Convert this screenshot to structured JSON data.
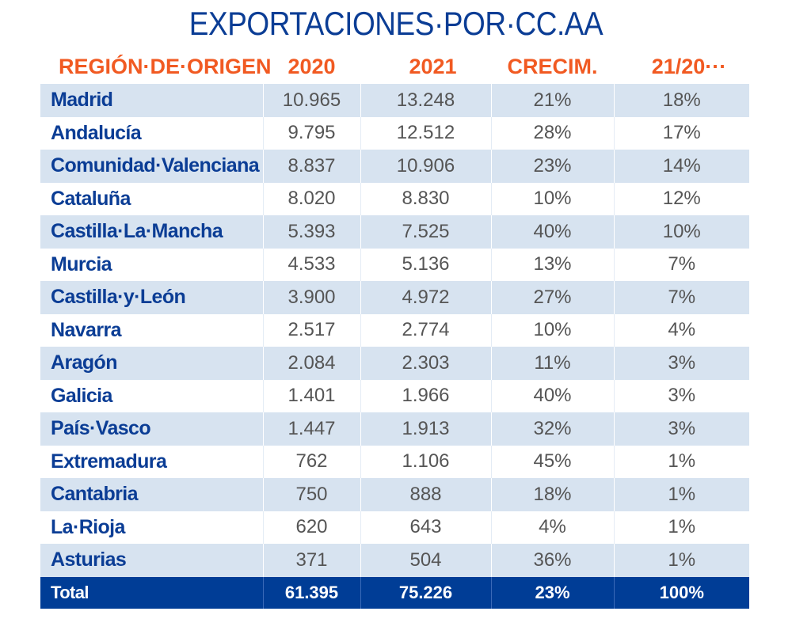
{
  "title": "EXPORTACIONES·POR·CC.AA",
  "headers": {
    "region": "REGIÓN·DE·ORIGEN",
    "y2020": "2020",
    "y2021": "2021",
    "growth": "CRECIM.",
    "share": "21/20···"
  },
  "rows": [
    {
      "region": "Madrid",
      "y2020": "10.965",
      "y2021": "13.248",
      "growth": "21%",
      "share": "18%"
    },
    {
      "region": "Andalucía",
      "y2020": "9.795",
      "y2021": "12.512",
      "growth": "28%",
      "share": "17%"
    },
    {
      "region": "Comunidad·Valenciana",
      "y2020": "8.837",
      "y2021": "10.906",
      "growth": "23%",
      "share": "14%"
    },
    {
      "region": "Cataluña",
      "y2020": "8.020",
      "y2021": "8.830",
      "growth": "10%",
      "share": "12%"
    },
    {
      "region": "Castilla·La·Mancha",
      "y2020": "5.393",
      "y2021": "7.525",
      "growth": "40%",
      "share": "10%"
    },
    {
      "region": "Murcia",
      "y2020": "4.533",
      "y2021": "5.136",
      "growth": "13%",
      "share": "7%"
    },
    {
      "region": "Castilla·y·León",
      "y2020": "3.900",
      "y2021": "4.972",
      "growth": "27%",
      "share": "7%"
    },
    {
      "region": "Navarra",
      "y2020": "2.517",
      "y2021": "2.774",
      "growth": "10%",
      "share": "4%"
    },
    {
      "region": "Aragón",
      "y2020": "2.084",
      "y2021": "2.303",
      "growth": "11%",
      "share": "3%"
    },
    {
      "region": "Galicia",
      "y2020": "1.401",
      "y2021": "1.966",
      "growth": "40%",
      "share": "3%"
    },
    {
      "region": "País·Vasco",
      "y2020": "1.447",
      "y2021": "1.913",
      "growth": "32%",
      "share": "3%"
    },
    {
      "region": "Extremadura",
      "y2020": "762",
      "y2021": "1.106",
      "growth": "45%",
      "share": "1%"
    },
    {
      "region": "Cantabria",
      "y2020": "750",
      "y2021": "888",
      "growth": "18%",
      "share": "1%"
    },
    {
      "region": "La·Rioja",
      "y2020": "620",
      "y2021": "643",
      "growth": "4%",
      "share": "1%"
    },
    {
      "region": "Asturias",
      "y2020": "371",
      "y2021": "504",
      "growth": "36%",
      "share": "1%"
    }
  ],
  "total": {
    "region": "Total",
    "y2020": "61.395",
    "y2021": "75.226",
    "growth": "23%",
    "share": "100%"
  },
  "colors": {
    "title": "#0b3d95",
    "header": "#f15a22",
    "stripe": "#d7e3f0",
    "total_bg": "#003d96"
  }
}
